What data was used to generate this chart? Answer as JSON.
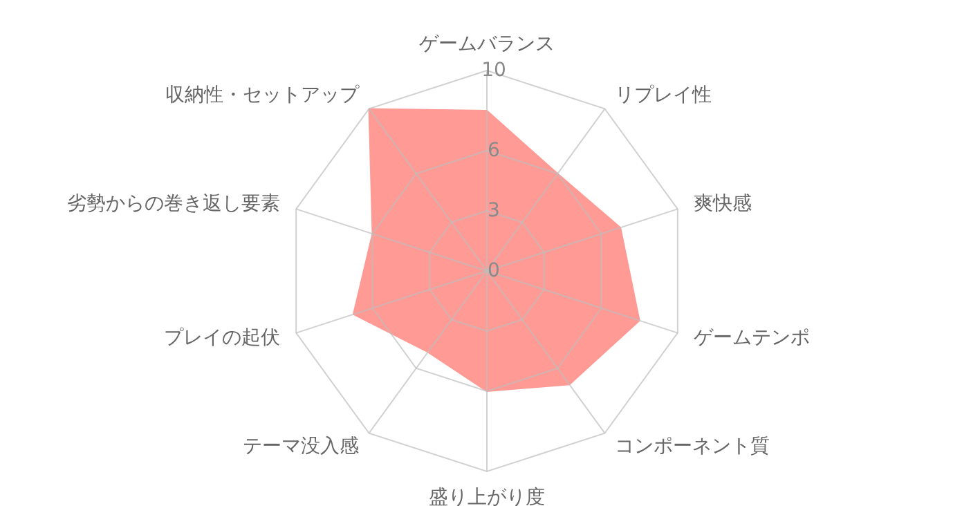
{
  "chart_data": {
    "type": "radar",
    "categories": [
      "ゲームバランス",
      "リプレイ性",
      "爽快感",
      "ゲームテンポ",
      "コンポーネント質",
      "盛り上がり度",
      "テーマ没入感",
      "プレイの起伏",
      "劣勢からの巻き返し要素",
      "収納性・セットアップ"
    ],
    "series": [
      {
        "color": "#ff9a94",
        "values": [
          8,
          6,
          7,
          8,
          7,
          6,
          5,
          7,
          6,
          10
        ]
      }
    ],
    "ylim": [
      0,
      10
    ],
    "yticks": [
      0,
      3,
      6,
      10
    ],
    "grid": true
  }
}
